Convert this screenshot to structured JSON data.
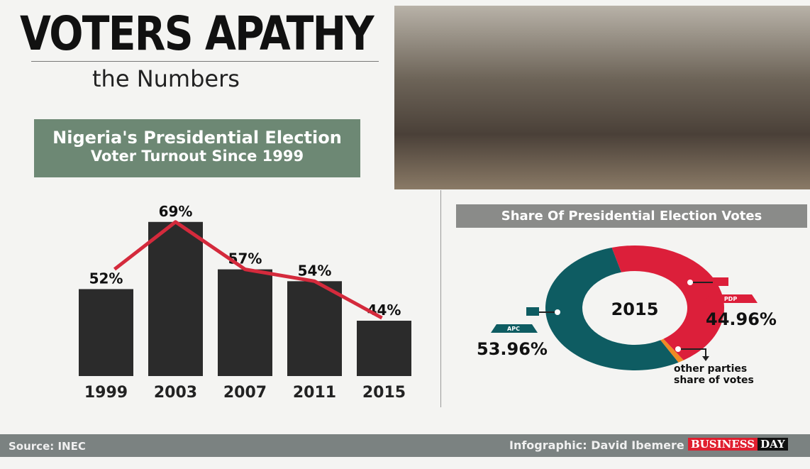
{
  "header": {
    "title": "VOTERS APATHY",
    "subtitle": "the Numbers"
  },
  "banner": {
    "line1": "Nigeria's Presidential Election",
    "line2": "Voter Turnout Since 1999"
  },
  "pie_title": "Share Of Presidential Election Votes",
  "footer": {
    "source": "Source: INEC",
    "credit": "Infographic: David Ibemere",
    "logo_a": "BUSINESS",
    "logo_b": "DAY"
  },
  "chart_data": [
    {
      "type": "bar",
      "title": "Nigeria's Presidential Election Voter Turnout Since 1999",
      "categories": [
        "1999",
        "2003",
        "2007",
        "2011",
        "2015"
      ],
      "values": [
        52,
        69,
        57,
        54,
        44
      ],
      "labels": [
        "52%",
        "69%",
        "57%",
        "54%",
        "44%"
      ],
      "unit": "%",
      "bar_color": "#2b2b2b",
      "line_color": "#d42a3c"
    },
    {
      "type": "pie",
      "title": "Share Of Presidential Election Votes",
      "center_label": "2015",
      "slices": [
        {
          "name": "PDP",
          "value": 44.96,
          "label": "44.96%",
          "color": "#dc1f3a"
        },
        {
          "name": "other parties share of votes",
          "value": 1.08,
          "label": "other parties share of votes",
          "color": "#f08a24"
        },
        {
          "name": "APC",
          "value": 53.96,
          "label": "53.96%",
          "color": "#0e5c62"
        }
      ]
    }
  ]
}
